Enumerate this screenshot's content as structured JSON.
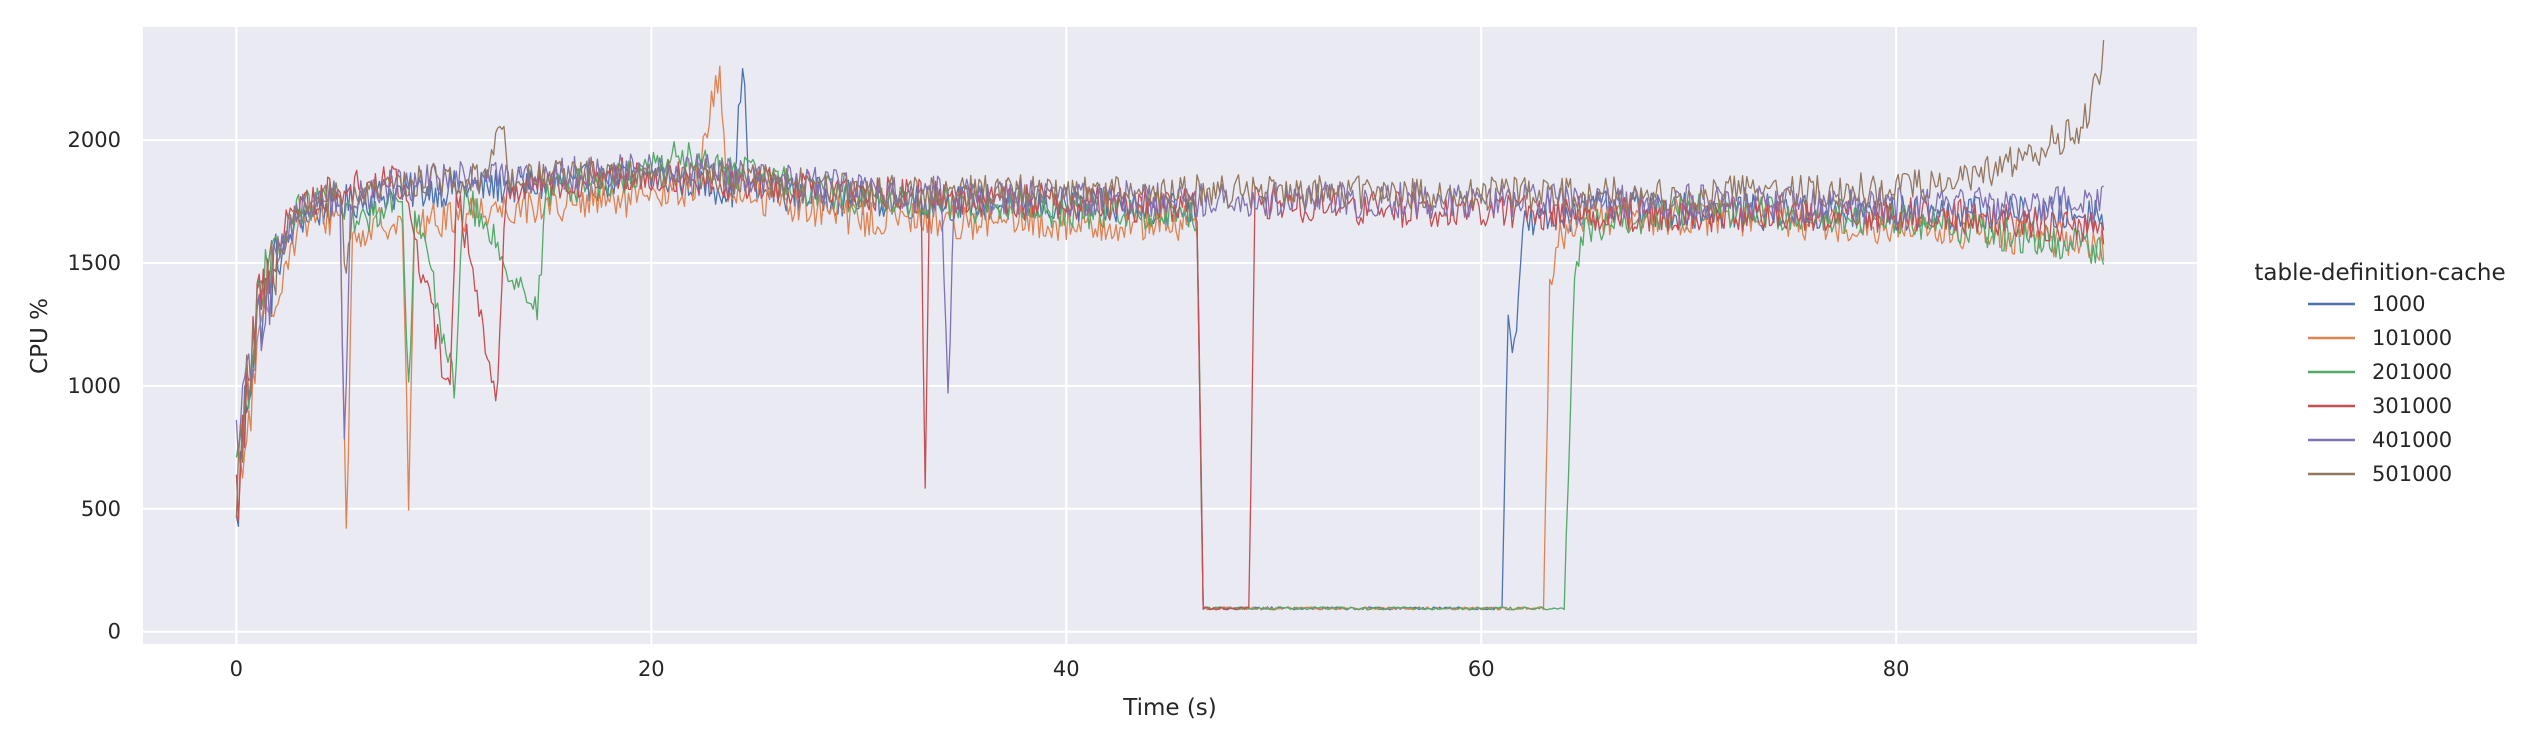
{
  "chart_data": {
    "type": "line",
    "title": "",
    "xlabel": "Time (s)",
    "ylabel": "CPU %",
    "xlim": [
      -4.5,
      94.5
    ],
    "ylim": [
      -50,
      2460
    ],
    "x_ticks": [
      0,
      20,
      40,
      60,
      80
    ],
    "y_ticks": [
      0,
      500,
      1000,
      1500,
      2000
    ],
    "grid": true,
    "background": "#eaeaf2",
    "legend": {
      "title": "table-definition-cache",
      "placement": "outside-right",
      "entries": [
        "1000",
        "101000",
        "201000",
        "301000",
        "401000",
        "501000"
      ]
    },
    "series": [
      {
        "name": "1000",
        "color": "#4c72b0",
        "level": 1720,
        "noise": 75,
        "points": [
          [
            0,
            400
          ],
          [
            0.4,
            900
          ],
          [
            1,
            1250
          ],
          [
            2,
            1500
          ],
          [
            3,
            1680
          ],
          [
            5,
            1740
          ],
          [
            8,
            1790
          ],
          [
            12,
            1810
          ],
          [
            18,
            1830
          ],
          [
            20,
            1850
          ],
          [
            22,
            1830
          ],
          [
            24,
            1800
          ],
          [
            24.4,
            2350
          ],
          [
            24.7,
            1800
          ],
          [
            30,
            1760
          ],
          [
            40,
            1730
          ],
          [
            46.3,
            1720
          ],
          [
            46.6,
            95
          ],
          [
            61,
            95
          ],
          [
            61.3,
            1320
          ],
          [
            61.6,
            1150
          ],
          [
            62,
            1650
          ],
          [
            65,
            1720
          ],
          [
            70,
            1710
          ],
          [
            80,
            1700
          ],
          [
            90,
            1700
          ]
        ]
      },
      {
        "name": "101000",
        "color": "#dd8452",
        "level": 1680,
        "noise": 75,
        "points": [
          [
            0,
            380
          ],
          [
            0.5,
            800
          ],
          [
            1,
            1100
          ],
          [
            2,
            1400
          ],
          [
            3,
            1650
          ],
          [
            5,
            1700
          ],
          [
            5.3,
            380
          ],
          [
            5.6,
            1600
          ],
          [
            8,
            1700
          ],
          [
            8.3,
            530
          ],
          [
            8.6,
            1650
          ],
          [
            12,
            1720
          ],
          [
            18,
            1750
          ],
          [
            20,
            1760
          ],
          [
            22,
            1800
          ],
          [
            23.3,
            2280
          ],
          [
            23.6,
            1800
          ],
          [
            30,
            1680
          ],
          [
            40,
            1660
          ],
          [
            46.3,
            1660
          ],
          [
            46.6,
            95
          ],
          [
            63,
            95
          ],
          [
            63.3,
            1370
          ],
          [
            63.8,
            1600
          ],
          [
            65,
            1680
          ],
          [
            70,
            1690
          ],
          [
            80,
            1650
          ],
          [
            90,
            1580
          ]
        ]
      },
      {
        "name": "201000",
        "color": "#55a868",
        "level": 1740,
        "noise": 70,
        "points": [
          [
            0,
            600
          ],
          [
            0.5,
            1000
          ],
          [
            1,
            1300
          ],
          [
            2,
            1550
          ],
          [
            3,
            1720
          ],
          [
            5,
            1780
          ],
          [
            5.8,
            1650
          ],
          [
            8,
            1790
          ],
          [
            8.3,
            950
          ],
          [
            8.6,
            1750
          ],
          [
            10.5,
            1000
          ],
          [
            11,
            1780
          ],
          [
            14.5,
            1300
          ],
          [
            15,
            1800
          ],
          [
            18,
            1840
          ],
          [
            20,
            1880
          ],
          [
            21,
            1940
          ],
          [
            24,
            1870
          ],
          [
            30,
            1760
          ],
          [
            40,
            1710
          ],
          [
            46.3,
            1700
          ],
          [
            46.6,
            95
          ],
          [
            64,
            95
          ],
          [
            64.5,
            1400
          ],
          [
            65,
            1650
          ],
          [
            70,
            1720
          ],
          [
            80,
            1680
          ],
          [
            90,
            1560
          ]
        ]
      },
      {
        "name": "301000",
        "color": "#c44e52",
        "level": 1730,
        "noise": 75,
        "points": [
          [
            0,
            500
          ],
          [
            0.5,
            1000
          ],
          [
            1,
            1300
          ],
          [
            2,
            1600
          ],
          [
            3,
            1740
          ],
          [
            5,
            1800
          ],
          [
            8,
            1830
          ],
          [
            10.3,
            950
          ],
          [
            10.6,
            1800
          ],
          [
            12.6,
            950
          ],
          [
            13,
            1820
          ],
          [
            18,
            1850
          ],
          [
            20,
            1870
          ],
          [
            22,
            1850
          ],
          [
            24,
            1830
          ],
          [
            30,
            1780
          ],
          [
            33,
            1770
          ],
          [
            33.2,
            590
          ],
          [
            33.4,
            1760
          ],
          [
            40,
            1750
          ],
          [
            46.3,
            1730
          ],
          [
            46.6,
            95
          ],
          [
            48.8,
            95
          ],
          [
            49.1,
            1750
          ],
          [
            55,
            1720
          ],
          [
            60,
            1710
          ],
          [
            70,
            1700
          ],
          [
            80,
            1700
          ],
          [
            90,
            1650
          ]
        ]
      },
      {
        "name": "401000",
        "color": "#8172b3",
        "level": 1760,
        "noise": 75,
        "points": [
          [
            0,
            700
          ],
          [
            0.5,
            1000
          ],
          [
            1,
            1200
          ],
          [
            2,
            1550
          ],
          [
            3,
            1700
          ],
          [
            5,
            1780
          ],
          [
            5.2,
            730
          ],
          [
            5.5,
            1750
          ],
          [
            8,
            1820
          ],
          [
            12,
            1850
          ],
          [
            18,
            1870
          ],
          [
            20,
            1880
          ],
          [
            24,
            1860
          ],
          [
            30,
            1800
          ],
          [
            34,
            1780
          ],
          [
            34.3,
            960
          ],
          [
            34.6,
            1780
          ],
          [
            40,
            1760
          ],
          [
            50,
            1760
          ],
          [
            60,
            1750
          ],
          [
            70,
            1750
          ],
          [
            80,
            1730
          ],
          [
            90,
            1740
          ]
        ]
      },
      {
        "name": "501000",
        "color": "#937860",
        "level": 1780,
        "noise": 70,
        "points": [
          [
            0,
            600
          ],
          [
            0.5,
            1000
          ],
          [
            1,
            1250
          ],
          [
            2,
            1550
          ],
          [
            3,
            1700
          ],
          [
            5,
            1780
          ],
          [
            5.3,
            1400
          ],
          [
            5.6,
            1750
          ],
          [
            8,
            1830
          ],
          [
            12,
            1850
          ],
          [
            12.8,
            2110
          ],
          [
            13.1,
            1850
          ],
          [
            18,
            1870
          ],
          [
            20,
            1870
          ],
          [
            24,
            1850
          ],
          [
            30,
            1790
          ],
          [
            40,
            1790
          ],
          [
            50,
            1790
          ],
          [
            60,
            1780
          ],
          [
            70,
            1780
          ],
          [
            80,
            1800
          ],
          [
            84,
            1850
          ],
          [
            87,
            1970
          ],
          [
            89,
            2050
          ],
          [
            89.5,
            2200
          ],
          [
            90,
            2340
          ]
        ]
      }
    ]
  }
}
